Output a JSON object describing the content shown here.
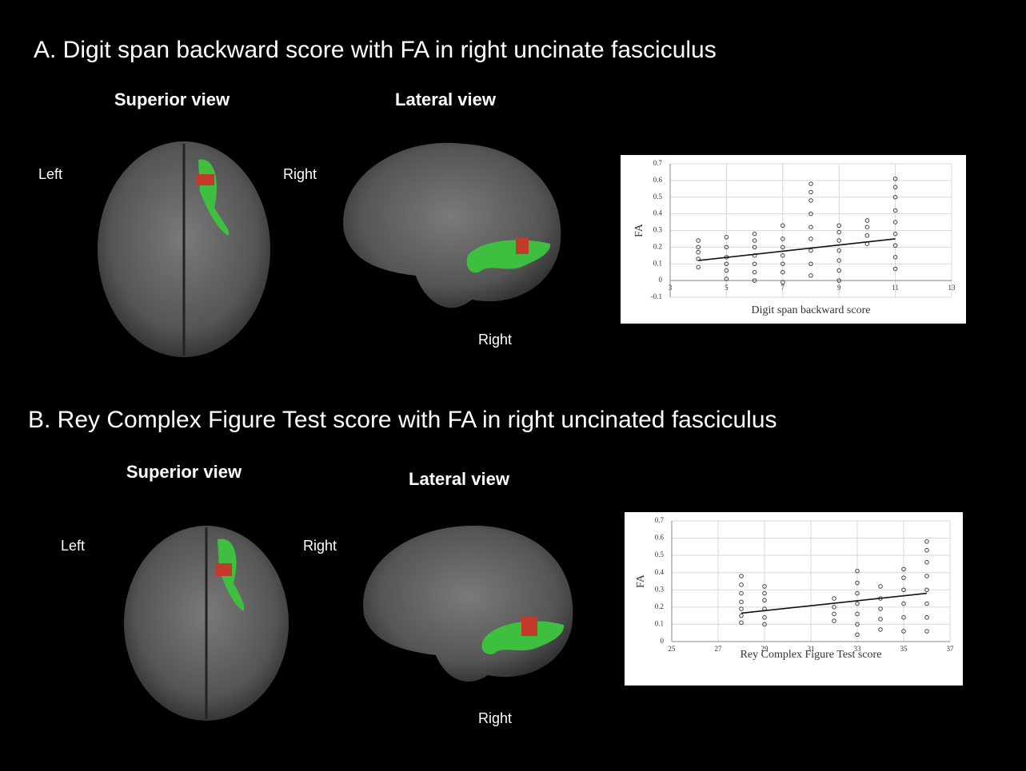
{
  "panels": [
    {
      "title": "A.  Digit span backward score with FA in right uncinate fasciculus",
      "superior_view": "Superior view",
      "lateral_view": "Lateral view",
      "left": "Left",
      "right": "Right",
      "lateral_right": "Right"
    },
    {
      "title": "B. Rey Complex Figure Test score with FA in right uncinated fasciculus",
      "superior_view": "Superior view",
      "lateral_view": "Lateral view",
      "left": "Left",
      "right": "Right",
      "lateral_right": "Right"
    }
  ],
  "chart_data": [
    {
      "type": "scatter",
      "x_label": "Digit span backward score",
      "y_label": "FA",
      "color": "#444444",
      "grid": true,
      "xlim": [
        3,
        13
      ],
      "xticks": [
        3,
        5,
        7,
        9,
        11,
        13
      ],
      "ylim": [
        -0.1,
        0.7
      ],
      "yticks": [
        -0.1,
        0,
        0.1,
        0.2,
        0.3,
        0.4,
        0.5,
        0.6,
        0.7
      ],
      "x": [
        4,
        4,
        4,
        4,
        4,
        5,
        5,
        5,
        5,
        5,
        5,
        6,
        6,
        6,
        6,
        6,
        6,
        6,
        7,
        7,
        7,
        7,
        7,
        7,
        7,
        8,
        8,
        8,
        8,
        8,
        8,
        8,
        8,
        8,
        9,
        9,
        9,
        9,
        9,
        9,
        9,
        10,
        10,
        10,
        10,
        11,
        11,
        11,
        11,
        11,
        11,
        11,
        11,
        11
      ],
      "values": [
        0.08,
        0.13,
        0.17,
        0.2,
        0.24,
        0.01,
        0.06,
        0.1,
        0.14,
        0.2,
        0.26,
        0,
        0.05,
        0.1,
        0.15,
        0.2,
        0.24,
        0.28,
        -0.01,
        0.05,
        0.1,
        0.15,
        0.2,
        0.25,
        0.33,
        0.03,
        0.1,
        0.18,
        0.25,
        0.32,
        0.4,
        0.48,
        0.53,
        0.58,
        0,
        0.06,
        0.12,
        0.18,
        0.24,
        0.29,
        0.33,
        0.22,
        0.27,
        0.32,
        0.36,
        0.07,
        0.14,
        0.21,
        0.28,
        0.35,
        0.42,
        0.5,
        0.56,
        0.61
      ],
      "trend": {
        "x": [
          4,
          11
        ],
        "values": [
          0.12,
          0.25
        ]
      }
    },
    {
      "type": "scatter",
      "x_label": "Rey Complex  Figure Test score",
      "y_label": "FA",
      "color": "#444444",
      "grid": true,
      "xlim": [
        25,
        37
      ],
      "xticks": [
        25,
        27,
        29,
        31,
        33,
        35,
        37
      ],
      "ylim": [
        0,
        0.7
      ],
      "yticks": [
        0,
        0.1,
        0.2,
        0.3,
        0.4,
        0.5,
        0.6,
        0.7
      ],
      "x": [
        28,
        28,
        28,
        28,
        28,
        28,
        28,
        29,
        29,
        29,
        29,
        29,
        29,
        32,
        32,
        32,
        32,
        33,
        33,
        33,
        33,
        33,
        33,
        33,
        34,
        34,
        34,
        34,
        34,
        35,
        35,
        35,
        35,
        35,
        35,
        36,
        36,
        36,
        36,
        36,
        36,
        36,
        36
      ],
      "values": [
        0.11,
        0.15,
        0.19,
        0.23,
        0.28,
        0.33,
        0.38,
        0.1,
        0.14,
        0.19,
        0.24,
        0.28,
        0.32,
        0.12,
        0.16,
        0.2,
        0.25,
        0.04,
        0.1,
        0.16,
        0.22,
        0.28,
        0.34,
        0.41,
        0.07,
        0.13,
        0.19,
        0.25,
        0.32,
        0.06,
        0.14,
        0.22,
        0.3,
        0.37,
        0.42,
        0.06,
        0.14,
        0.22,
        0.3,
        0.38,
        0.46,
        0.53,
        0.58
      ],
      "trend": {
        "x": [
          28,
          36
        ],
        "values": [
          0.165,
          0.28
        ]
      }
    }
  ]
}
